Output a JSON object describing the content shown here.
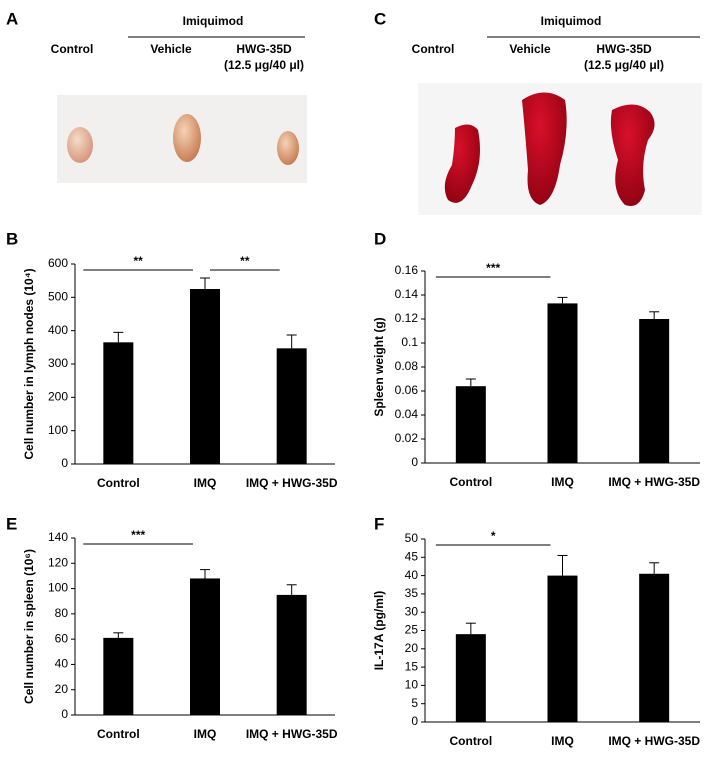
{
  "photo_panels": [
    {
      "label": "A",
      "group": "Imiquimod",
      "columns": [
        "Control",
        "Vehicle",
        "HWG-35D",
        "(12.5 μg/40 μl)"
      ]
    },
    {
      "label": "C",
      "group": "Imiquimod",
      "columns": [
        "Control",
        "Vehicle",
        "HWG-35D",
        "(12.5 μg/40 μl)"
      ]
    }
  ],
  "chart_data": [
    {
      "type": "bar",
      "panel": "B",
      "ylabel": "Cell number in lymph nodes (10⁴)",
      "categories": [
        "Control",
        "IMQ",
        "IMQ + HWG-35D"
      ],
      "values": [
        365,
        525,
        347
      ],
      "errors": [
        30,
        33,
        40
      ],
      "color": "#000000",
      "ylim": [
        0,
        600
      ],
      "yticks": [
        0,
        100,
        200,
        300,
        400,
        500,
        600
      ],
      "significance": [
        {
          "from": 0,
          "to": 1,
          "label": "**"
        },
        {
          "from": 1,
          "to": 2,
          "label": "**"
        }
      ]
    },
    {
      "type": "bar",
      "panel": "D",
      "ylabel": "Spleen weight (g)",
      "categories": [
        "Control",
        "IMQ",
        "IMQ + HWG-35D"
      ],
      "values": [
        0.064,
        0.133,
        0.12
      ],
      "errors": [
        0.006,
        0.005,
        0.006
      ],
      "color": "#000000",
      "ylim": [
        0,
        0.16
      ],
      "yticks": [
        0,
        0.02,
        0.04,
        0.06,
        0.08,
        0.1,
        0.12,
        0.14,
        0.16
      ],
      "significance": [
        {
          "from": 0,
          "to": 1,
          "label": "***"
        }
      ]
    },
    {
      "type": "bar",
      "panel": "E",
      "ylabel": "Cell number in  spleen (10⁶)",
      "categories": [
        "Control",
        "IMQ",
        "IMQ + HWG-35D"
      ],
      "values": [
        61,
        108,
        95
      ],
      "errors": [
        4,
        7,
        8
      ],
      "color": "#000000",
      "ylim": [
        0,
        140
      ],
      "yticks": [
        0,
        20,
        40,
        60,
        80,
        100,
        120,
        140
      ],
      "significance": [
        {
          "from": 0,
          "to": 1,
          "label": "***"
        }
      ]
    },
    {
      "type": "bar",
      "panel": "F",
      "ylabel": "IL-17A (pg/ml)",
      "categories": [
        "Control",
        "IMQ",
        "IMQ + HWG-35D"
      ],
      "values": [
        24,
        40,
        40.5
      ],
      "errors": [
        3,
        5.5,
        3
      ],
      "color": "#000000",
      "ylim": [
        0,
        50
      ],
      "yticks": [
        0,
        5,
        10,
        15,
        20,
        25,
        30,
        35,
        40,
        45,
        50
      ],
      "significance": [
        {
          "from": 0,
          "to": 1,
          "label": "*"
        }
      ]
    }
  ]
}
